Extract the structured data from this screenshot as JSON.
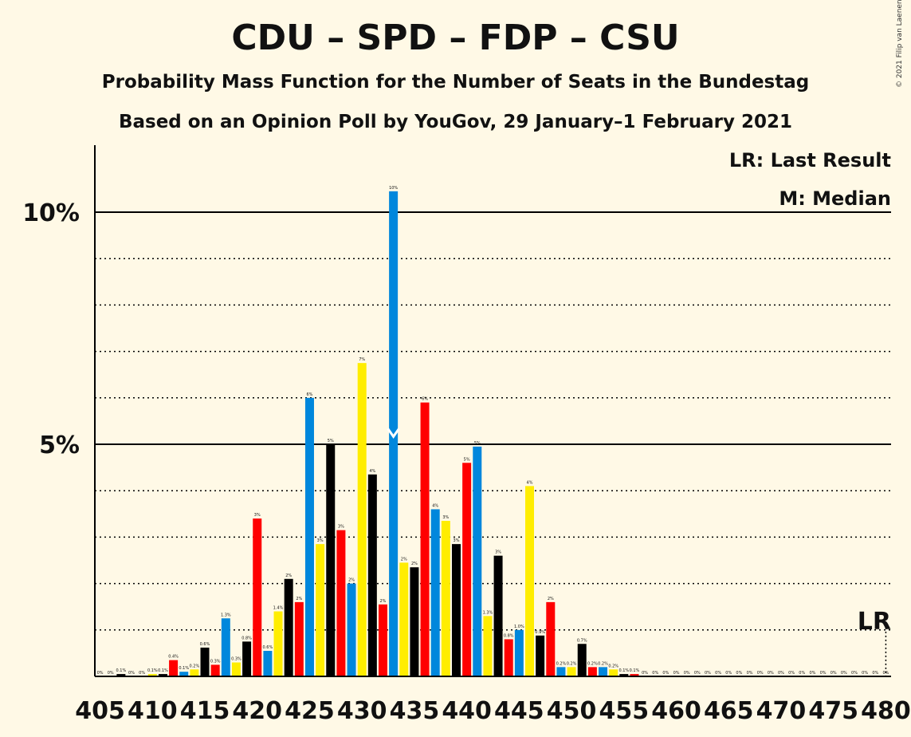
{
  "title": "CDU – SPD – FDP – CSU",
  "subtitle_1": "Probability Mass Function for the Number of Seats in the Bundestag",
  "subtitle_2": "Based on an Opinion Poll by YouGov, 29 January–1 February 2021",
  "copyright": "© 2021 Filip van Laenen",
  "legend": {
    "last_result": "LR: Last Result",
    "median": "M: Median"
  },
  "markers": {
    "last_result_label": "LR",
    "last_result_seat": 480,
    "median_label": "M",
    "median_seat": 433
  },
  "colors": {
    "background": "#FFF9E6",
    "cycle": [
      "#0087DC",
      "#FFED00",
      "#000000",
      "#FF0000"
    ],
    "median_marker": "#FFFFFF"
  },
  "chart_data": {
    "type": "bar",
    "x": [
      405,
      406,
      407,
      408,
      409,
      410,
      411,
      412,
      413,
      414,
      415,
      416,
      417,
      418,
      419,
      420,
      421,
      422,
      423,
      424,
      425,
      426,
      427,
      428,
      429,
      430,
      431,
      432,
      433,
      434,
      435,
      436,
      437,
      438,
      439,
      440,
      441,
      442,
      443,
      444,
      445,
      446,
      447,
      448,
      449,
      450,
      451,
      452,
      453,
      454,
      455,
      456,
      457,
      458,
      459,
      460,
      461,
      462,
      463,
      464,
      465,
      466,
      467,
      468,
      469,
      470,
      471,
      472,
      473,
      474,
      475,
      476,
      477,
      478,
      479,
      480
    ],
    "values": [
      0.0,
      0.0,
      0.05,
      0.0,
      0.0,
      0.05,
      0.05,
      0.35,
      0.1,
      0.15,
      0.62,
      0.25,
      1.25,
      0.3,
      0.75,
      3.4,
      0.55,
      1.4,
      2.1,
      1.6,
      6.0,
      2.85,
      5.0,
      3.15,
      2.0,
      6.75,
      4.35,
      1.55,
      10.45,
      2.45,
      2.35,
      5.9,
      3.6,
      3.35,
      2.85,
      4.6,
      4.95,
      1.3,
      2.6,
      0.8,
      1.0,
      4.1,
      0.88,
      1.6,
      0.2,
      0.2,
      0.7,
      0.2,
      0.2,
      0.15,
      0.05,
      0.05,
      0.0,
      0.0,
      0.0,
      0.0,
      0.0,
      0.0,
      0.0,
      0.0,
      0.0,
      0.0,
      0.0,
      0.0,
      0.0,
      0.0,
      0.0,
      0.0,
      0.0,
      0.0,
      0.0,
      0.0,
      0.0,
      0.0,
      0.0,
      0.0
    ],
    "labels": [
      "0%",
      "0%",
      "0.1%",
      "0%",
      "0%",
      "0.1%",
      "0.1%",
      "0.4%",
      "0.1%",
      "0.2%",
      "0.6%",
      "0.3%",
      "1.3%",
      "0.3%",
      "0.8%",
      "3%",
      "0.6%",
      "1.4%",
      "2%",
      "2%",
      "6%",
      "3%",
      "5%",
      "3%",
      "2%",
      "7%",
      "4%",
      "2%",
      "10%",
      "2%",
      "2%",
      "6%",
      "4%",
      "3%",
      "3%",
      "5%",
      "5%",
      "1.3%",
      "3%",
      "0.8%",
      "1.0%",
      "4%",
      "0.9%",
      "2%",
      "0.2%",
      "0.2%",
      "0.7%",
      "0.2%",
      "0.2%",
      "0.2%",
      "0.1%",
      "0.1%",
      "0%",
      "0%",
      "0%",
      "0%",
      "0%",
      "0%",
      "0%",
      "0%",
      "0%",
      "0%",
      "0%",
      "0%",
      "0%",
      "0%",
      "0%",
      "0%",
      "0%",
      "0%",
      "0%",
      "0%",
      "0%",
      "0%",
      "0%",
      "0%"
    ],
    "x_tick_labels": [
      "405",
      "410",
      "415",
      "420",
      "425",
      "430",
      "435",
      "440",
      "445",
      "450",
      "455",
      "460",
      "465",
      "470",
      "475",
      "480"
    ],
    "y_tick_labels": [
      "5%",
      "10%"
    ],
    "ylim": [
      0,
      11.4
    ],
    "grid": true,
    "legend_position": "top-right"
  }
}
